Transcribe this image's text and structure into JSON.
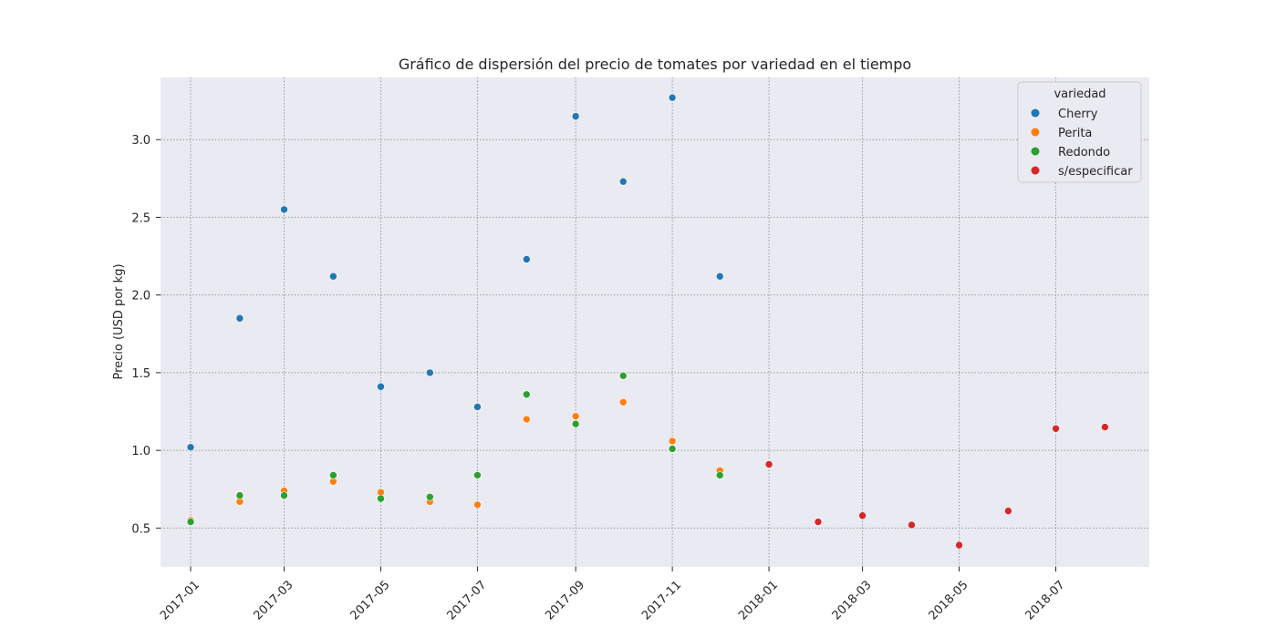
{
  "chart_data": {
    "type": "scatter",
    "title": "Gráfico de dispersión del precio de tomates por variedad en el tiempo",
    "xlabel": "",
    "ylabel": "Precio (USD por kg)",
    "x_axis_kind": "date",
    "xlim": [
      "2016-12-13",
      "2018-08-29"
    ],
    "ylim": [
      0.25,
      3.4
    ],
    "x_ticks": [
      "2017-01",
      "2017-03",
      "2017-05",
      "2017-07",
      "2017-09",
      "2017-11",
      "2018-01",
      "2018-03",
      "2018-05",
      "2018-07"
    ],
    "y_ticks": [
      "0.5",
      "1.0",
      "1.5",
      "2.0",
      "2.5",
      "3.0"
    ],
    "grid": true,
    "grid_style": "dotted",
    "legend_title": "variedad",
    "legend_position": "top-right",
    "series": [
      {
        "name": "Cherry",
        "color": "#1f77b4",
        "points": [
          {
            "x": "2017-01-01",
            "y": 1.02
          },
          {
            "x": "2017-02-01",
            "y": 1.85
          },
          {
            "x": "2017-03-01",
            "y": 2.55
          },
          {
            "x": "2017-04-01",
            "y": 2.12
          },
          {
            "x": "2017-05-01",
            "y": 1.41
          },
          {
            "x": "2017-06-01",
            "y": 1.5
          },
          {
            "x": "2017-07-01",
            "y": 1.28
          },
          {
            "x": "2017-08-01",
            "y": 2.23
          },
          {
            "x": "2017-09-01",
            "y": 3.15
          },
          {
            "x": "2017-10-01",
            "y": 2.73
          },
          {
            "x": "2017-11-01",
            "y": 3.27
          },
          {
            "x": "2017-12-01",
            "y": 2.12
          }
        ]
      },
      {
        "name": "Perita",
        "color": "#ff7f0e",
        "points": [
          {
            "x": "2017-01-01",
            "y": 0.55
          },
          {
            "x": "2017-02-01",
            "y": 0.67
          },
          {
            "x": "2017-03-01",
            "y": 0.74
          },
          {
            "x": "2017-04-01",
            "y": 0.8
          },
          {
            "x": "2017-05-01",
            "y": 0.73
          },
          {
            "x": "2017-06-01",
            "y": 0.67
          },
          {
            "x": "2017-07-01",
            "y": 0.65
          },
          {
            "x": "2017-08-01",
            "y": 1.2
          },
          {
            "x": "2017-09-01",
            "y": 1.22
          },
          {
            "x": "2017-10-01",
            "y": 1.31
          },
          {
            "x": "2017-11-01",
            "y": 1.06
          },
          {
            "x": "2017-12-01",
            "y": 0.87
          }
        ]
      },
      {
        "name": "Redondo",
        "color": "#2ca02c",
        "points": [
          {
            "x": "2017-01-01",
            "y": 0.54
          },
          {
            "x": "2017-02-01",
            "y": 0.71
          },
          {
            "x": "2017-03-01",
            "y": 0.71
          },
          {
            "x": "2017-04-01",
            "y": 0.84
          },
          {
            "x": "2017-05-01",
            "y": 0.69
          },
          {
            "x": "2017-06-01",
            "y": 0.7
          },
          {
            "x": "2017-07-01",
            "y": 0.84
          },
          {
            "x": "2017-08-01",
            "y": 1.36
          },
          {
            "x": "2017-09-01",
            "y": 1.17
          },
          {
            "x": "2017-10-01",
            "y": 1.48
          },
          {
            "x": "2017-11-01",
            "y": 1.01
          },
          {
            "x": "2017-12-01",
            "y": 0.84
          }
        ]
      },
      {
        "name": "s/especificar",
        "color": "#d62728",
        "points": [
          {
            "x": "2018-01-01",
            "y": 0.91
          },
          {
            "x": "2018-02-01",
            "y": 0.54
          },
          {
            "x": "2018-03-01",
            "y": 0.58
          },
          {
            "x": "2018-04-01",
            "y": 0.52
          },
          {
            "x": "2018-05-01",
            "y": 0.39
          },
          {
            "x": "2018-06-01",
            "y": 0.61
          },
          {
            "x": "2018-07-01",
            "y": 1.14
          },
          {
            "x": "2018-08-01",
            "y": 1.15
          }
        ]
      }
    ],
    "colors": {
      "plot_background": "#eaeaf2",
      "grid": "#9a9a9a",
      "text": "#262626"
    }
  }
}
